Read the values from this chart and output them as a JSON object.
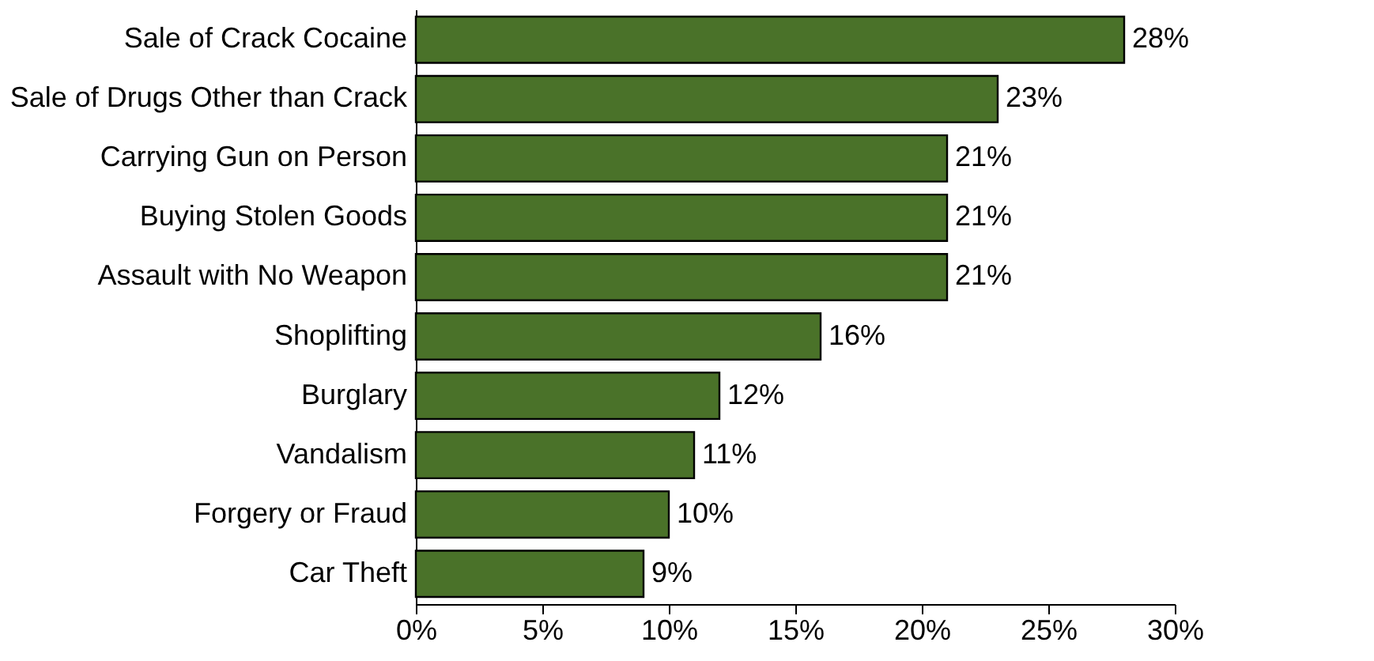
{
  "chart_data": {
    "type": "bar",
    "orientation": "horizontal",
    "categories": [
      "Sale of Crack Cocaine",
      "Sale of Drugs Other than Crack",
      "Carrying Gun on Person",
      "Buying Stolen Goods",
      "Assault with No Weapon",
      "Shoplifting",
      "Burglary",
      "Vandalism",
      "Forgery or Fraud",
      "Car Theft"
    ],
    "values": [
      28,
      23,
      21,
      21,
      21,
      16,
      12,
      11,
      10,
      9
    ],
    "value_labels": [
      "28%",
      "23%",
      "21%",
      "21%",
      "21%",
      "16%",
      "12%",
      "11%",
      "10%",
      "9%"
    ],
    "color": "#4a7229",
    "xlim": [
      0,
      30
    ],
    "xticks": [
      {
        "value": 0,
        "label": "0%"
      },
      {
        "value": 5,
        "label": "5%"
      },
      {
        "value": 10,
        "label": "10%"
      },
      {
        "value": 15,
        "label": "15%"
      },
      {
        "value": 20,
        "label": "20%"
      },
      {
        "value": 25,
        "label": "25%"
      },
      {
        "value": 30,
        "label": "30%"
      }
    ],
    "grid": false
  }
}
